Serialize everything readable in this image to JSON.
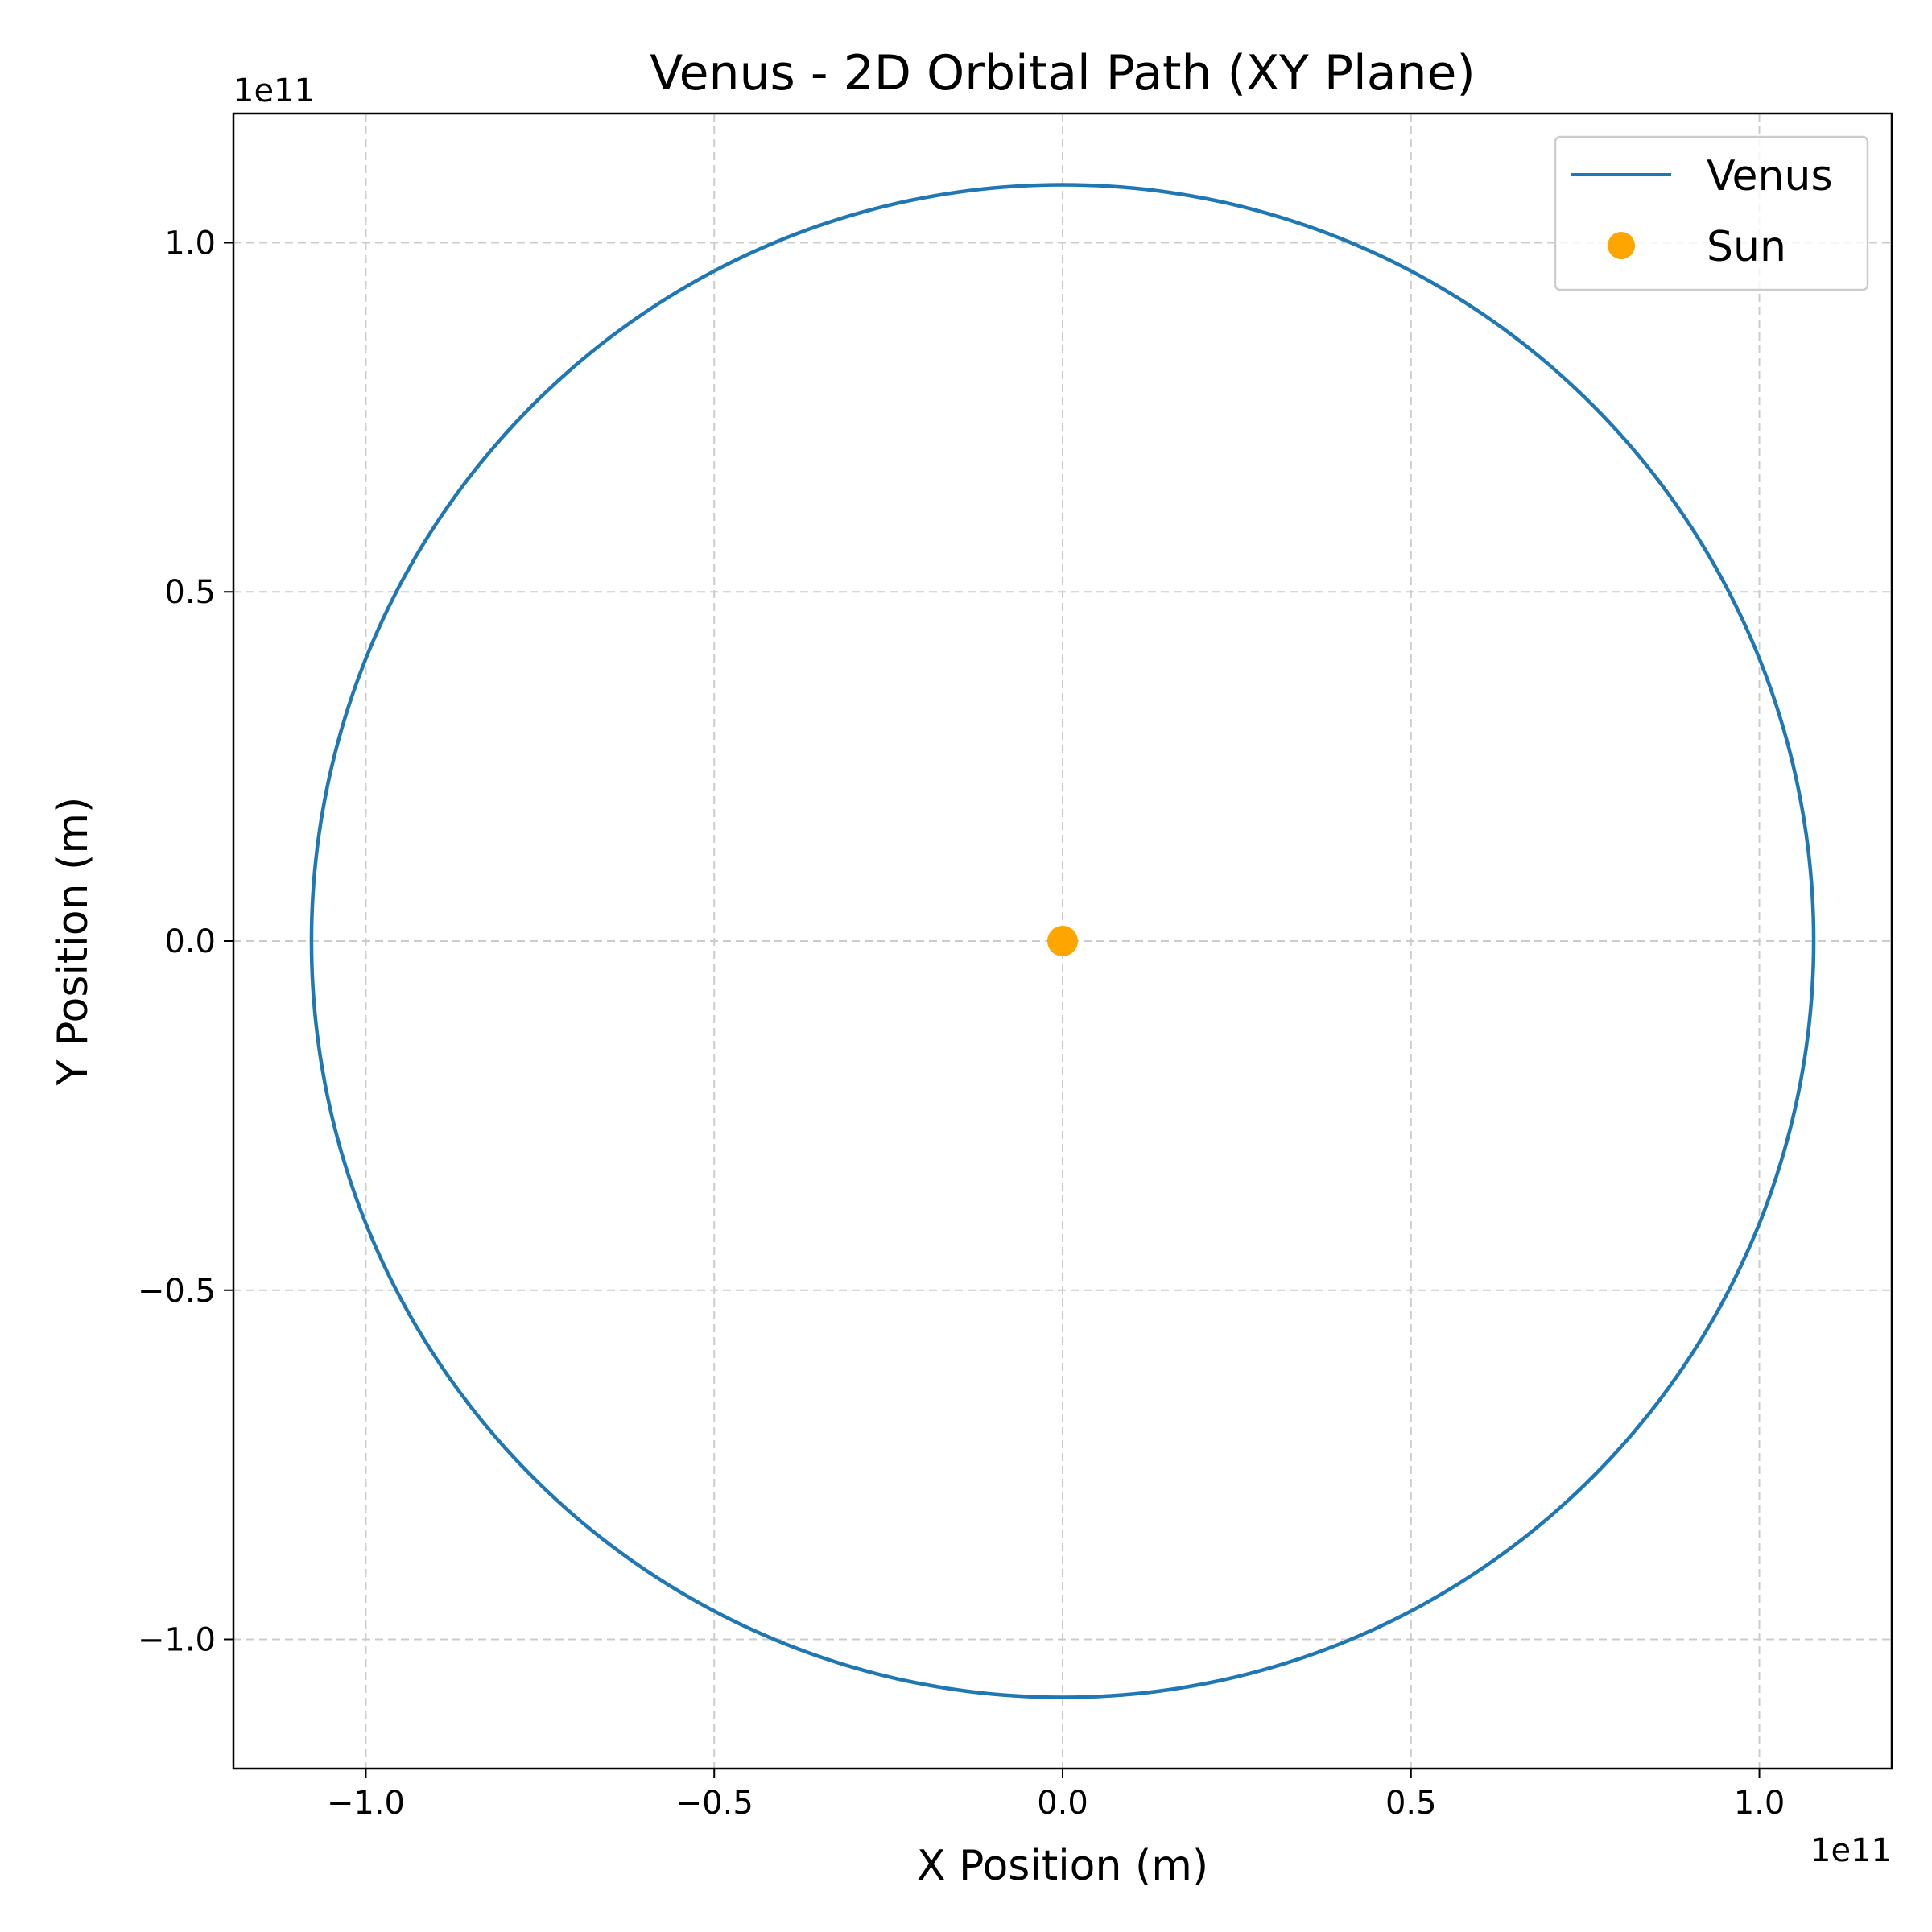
{
  "chart_data": {
    "type": "line",
    "title": "Venus - 2D Orbital Path (XY Plane)",
    "xlabel": "X Position (m)",
    "ylabel": "Y Position (m)",
    "x_offset_label": "1e11",
    "y_offset_label": "1e11",
    "xlim": [
      -119000000000.0,
      119000000000.0
    ],
    "ylim": [
      -118500000000.0,
      118500000000.0
    ],
    "xticks": [
      {
        "value": -100000000000.0,
        "label": "−1.0"
      },
      {
        "value": -50000000000.0,
        "label": "−0.5"
      },
      {
        "value": 0,
        "label": "0.0"
      },
      {
        "value": 50000000000.0,
        "label": "0.5"
      },
      {
        "value": 100000000000.0,
        "label": "1.0"
      }
    ],
    "yticks": [
      {
        "value": -100000000000.0,
        "label": "−1.0"
      },
      {
        "value": -50000000000.0,
        "label": "−0.5"
      },
      {
        "value": 0,
        "label": "0.0"
      },
      {
        "value": 50000000000.0,
        "label": "0.5"
      },
      {
        "value": 100000000000.0,
        "label": "1.0"
      }
    ],
    "grid": true,
    "legend_position": "top-right",
    "series": [
      {
        "name": "Venus",
        "kind": "orbit",
        "color": "#1f77b4",
        "center_x": 0,
        "center_y": 0,
        "radius_x": 107800000000.0,
        "radius_y": 108300000000.0
      },
      {
        "name": "Sun",
        "kind": "point",
        "color": "#ffa500",
        "x": 0,
        "y": 0
      }
    ]
  }
}
